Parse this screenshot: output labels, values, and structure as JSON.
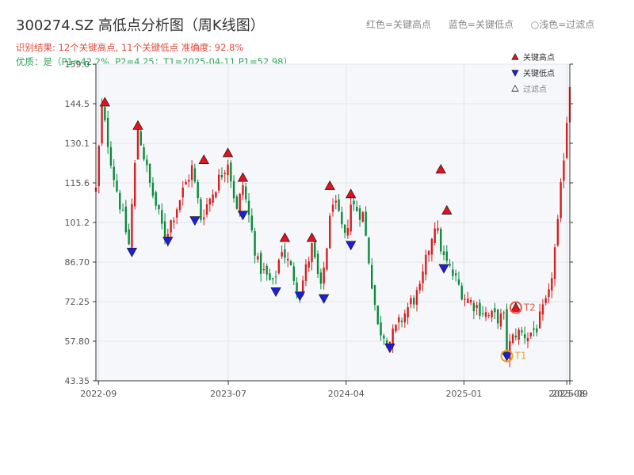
{
  "title": "300274.SZ 高低点分析图（周K线图）",
  "info_line1": "识别结果: 12个关键高点, 11个关键低点  准确度: 92.8%",
  "info_line2": "优质：是（P1=42.2%, P2=4.25；T1=2025-04-11 P1=52.98）",
  "top_legend": {
    "red": "红色=关键高点",
    "blue": "蓝色=关键低点",
    "light": "○浅色=过滤点"
  },
  "colors": {
    "up": "#d81e1e",
    "down": "#0a8a3c",
    "high_marker": "#e8101a",
    "low_marker": "#1d1de0",
    "t1": "#e8a21a",
    "t2": "#e05a4a",
    "grid": "#e1e4ea",
    "plot_bg": "#f6f7fa"
  },
  "chart_data": {
    "type": "candlestick",
    "title": "300274.SZ 高低点分析图（周K线图）",
    "ylim": [
      43.35,
      159.0
    ],
    "y_ticks": [
      "43.35",
      "57.80",
      "72.25",
      "86.70",
      "101.2",
      "115.6",
      "130.1",
      "144.5",
      "159.0"
    ],
    "x_range": [
      "2022-08-26",
      "2025-09-05"
    ],
    "x_ticks": [
      {
        "date": "2022-09-01",
        "label": "2022-09"
      },
      {
        "date": "2023-07-01",
        "label": "2023-07"
      },
      {
        "date": "2024-04-01",
        "label": "2024-04"
      },
      {
        "date": "2025-01-01",
        "label": "2025-01"
      },
      {
        "date": "2025-08-29",
        "label": "2025-08"
      },
      {
        "date": "2025-09-05",
        "label": "2025-09"
      }
    ],
    "legend": {
      "position": "top-right",
      "items": [
        {
          "symbol": "high",
          "label": "关键高点"
        },
        {
          "symbol": "low",
          "label": "关键低点"
        },
        {
          "symbol": "filtered",
          "label": "过滤点"
        }
      ]
    },
    "anchors": [
      [
        "2022-08-26",
        113
      ],
      [
        "2022-09-09",
        143
      ],
      [
        "2022-10-07",
        118
      ],
      [
        "2022-11-11",
        93
      ],
      [
        "2022-12-02",
        136
      ],
      [
        "2022-12-30",
        115
      ],
      [
        "2023-02-03",
        96
      ],
      [
        "2023-04-07",
        121
      ],
      [
        "2023-04-28",
        103
      ],
      [
        "2023-06-30",
        124
      ],
      [
        "2023-07-21",
        105
      ],
      [
        "2023-08-04",
        115
      ],
      [
        "2023-09-08",
        86
      ],
      [
        "2023-10-13",
        78
      ],
      [
        "2023-11-03",
        92
      ],
      [
        "2023-12-15",
        76
      ],
      [
        "2024-01-12",
        92
      ],
      [
        "2024-02-02",
        76
      ],
      [
        "2024-03-01",
        110
      ],
      [
        "2024-03-29",
        95
      ],
      [
        "2024-04-12",
        108
      ],
      [
        "2024-05-10",
        104
      ],
      [
        "2024-06-14",
        63
      ],
      [
        "2024-07-12",
        58
      ],
      [
        "2024-08-30",
        72
      ],
      [
        "2024-09-20",
        76
      ],
      [
        "2024-10-11",
        92
      ],
      [
        "2024-10-25",
        101
      ],
      [
        "2024-11-15",
        88
      ],
      [
        "2025-01-03",
        74
      ],
      [
        "2025-02-28",
        67
      ],
      [
        "2025-04-04",
        66
      ],
      [
        "2025-04-11",
        54
      ],
      [
        "2025-05-02",
        61
      ],
      [
        "2025-05-30",
        60
      ],
      [
        "2025-06-20",
        63
      ],
      [
        "2025-07-18",
        74
      ],
      [
        "2025-08-08",
        100
      ],
      [
        "2025-09-05",
        152
      ]
    ],
    "key_highs": [
      {
        "date": "2022-09-16",
        "value": 144.5
      },
      {
        "date": "2022-12-02",
        "value": 136.0
      },
      {
        "date": "2023-05-05",
        "value": 123.5
      },
      {
        "date": "2023-06-30",
        "value": 126.0
      },
      {
        "date": "2023-08-04",
        "value": 117.0
      },
      {
        "date": "2023-11-10",
        "value": 95.0
      },
      {
        "date": "2024-01-12",
        "value": 95.0
      },
      {
        "date": "2024-02-23",
        "value": 114.0
      },
      {
        "date": "2024-04-12",
        "value": 111.0
      },
      {
        "date": "2024-11-08",
        "value": 120.0
      },
      {
        "date": "2024-11-22",
        "value": 105.0
      },
      {
        "date": "2025-05-02",
        "value": 69.5
      }
    ],
    "key_lows": [
      {
        "date": "2022-11-18",
        "value": 91.0
      },
      {
        "date": "2023-02-10",
        "value": 95.0
      },
      {
        "date": "2023-04-14",
        "value": 102.5
      },
      {
        "date": "2023-08-04",
        "value": 104.5
      },
      {
        "date": "2023-10-20",
        "value": 76.5
      },
      {
        "date": "2023-12-15",
        "value": 75.0
      },
      {
        "date": "2024-02-09",
        "value": 74.0
      },
      {
        "date": "2024-04-12",
        "value": 93.5
      },
      {
        "date": "2024-07-12",
        "value": 56.0
      },
      {
        "date": "2024-11-15",
        "value": 85.0
      },
      {
        "date": "2025-04-11",
        "value": 52.98
      }
    ],
    "T1": {
      "date": "2025-04-11",
      "value": 52.98,
      "label": "T1"
    },
    "T2": {
      "date": "2025-05-02",
      "value": 69.5,
      "label": "T2"
    }
  }
}
